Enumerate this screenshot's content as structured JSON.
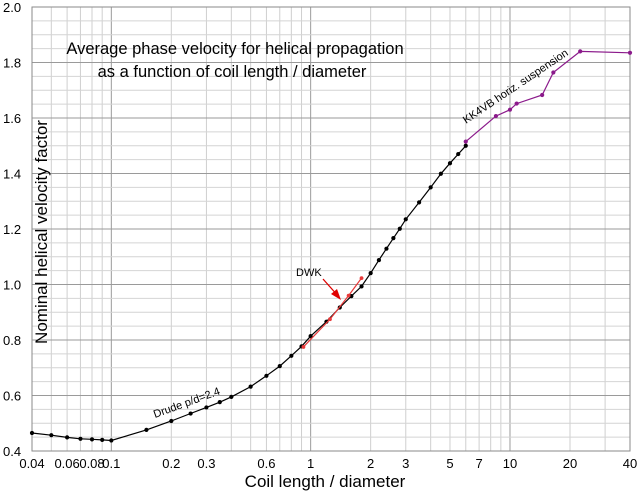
{
  "chart_data": {
    "type": "line",
    "title_lines": [
      "Average phase velocity for helical propagation",
      "as a function of coil length / diameter"
    ],
    "xlabel": "Coil length / diameter",
    "ylabel": "Nominal helical velocity factor",
    "x_scale": "log",
    "xlim": [
      0.04,
      40
    ],
    "ylim": [
      0.4,
      2.0
    ],
    "grid": true,
    "x_ticks": [
      0.04,
      0.06,
      0.08,
      0.1,
      0.2,
      0.3,
      0.6,
      1,
      2,
      3,
      5,
      7,
      10,
      20,
      40
    ],
    "x_tick_labels": [
      "0.04",
      "0.06",
      "0.08",
      "0.1",
      "0.2",
      "0.3",
      "0.6",
      "1",
      "2",
      "3",
      "5",
      "7",
      "10",
      "20",
      "40"
    ],
    "y_ticks": [
      0.4,
      0.6,
      0.8,
      1.0,
      1.2,
      1.4,
      1.6,
      1.8,
      2.0
    ],
    "y_tick_labels": [
      "0.4",
      "0.6",
      "0.8",
      "1.0",
      "1.2",
      "1.4",
      "1.6",
      "1.8",
      "2.0"
    ],
    "series": [
      {
        "name": "Drude p/d=2.4",
        "color": "#000000",
        "x": [
          0.04,
          0.05,
          0.06,
          0.07,
          0.08,
          0.09,
          0.1,
          0.15,
          0.2,
          0.25,
          0.3,
          0.35,
          0.4,
          0.5,
          0.6,
          0.7,
          0.8,
          0.9,
          1.0,
          1.2,
          1.4,
          1.6,
          1.8,
          2.0,
          2.2,
          2.4,
          2.6,
          2.8,
          3.0,
          3.5,
          4.0,
          4.5,
          5.0,
          5.5,
          6.0
        ],
        "y": [
          0.465,
          0.457,
          0.449,
          0.444,
          0.442,
          0.44,
          0.438,
          0.476,
          0.508,
          0.535,
          0.557,
          0.576,
          0.595,
          0.632,
          0.671,
          0.706,
          0.743,
          0.777,
          0.814,
          0.866,
          0.917,
          0.958,
          0.993,
          1.041,
          1.088,
          1.129,
          1.167,
          1.201,
          1.235,
          1.296,
          1.35,
          1.399,
          1.437,
          1.47,
          1.5
        ]
      },
      {
        "name": "KK4VB horiz. suspension",
        "color": "#8b1a8b",
        "x": [
          6.0,
          8.5,
          10.0,
          10.8,
          14.5,
          16.5,
          22.5,
          40.0
        ],
        "y": [
          1.515,
          1.607,
          1.63,
          1.652,
          1.683,
          1.764,
          1.84,
          1.835
        ]
      },
      {
        "name": "DWK",
        "color": "#e83a3a",
        "x": [
          0.92,
          1.25,
          1.55,
          1.8
        ],
        "y": [
          0.775,
          0.875,
          0.96,
          1.023
        ]
      }
    ],
    "annotations": {
      "drude": "Drude p/d=2.4",
      "kk4vb": "KK4VB horiz. suspension",
      "dwk": "DWK"
    }
  }
}
